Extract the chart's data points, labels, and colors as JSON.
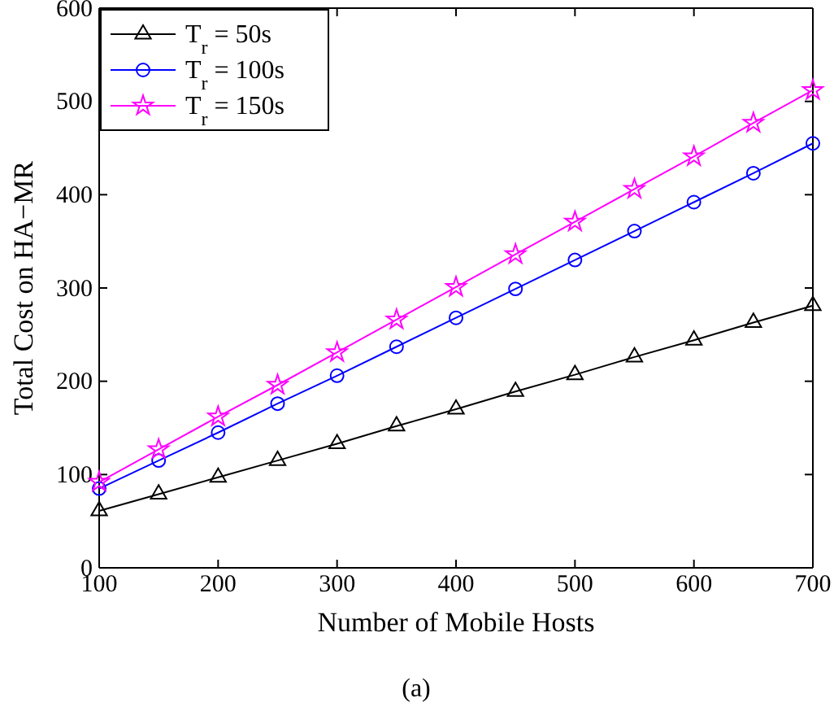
{
  "chart_data": {
    "type": "line",
    "xlabel": "Number of Mobile Hosts",
    "ylabel": "Total Cost on HA−MR",
    "annotations": [
      "(a)"
    ],
    "x": [
      100,
      150,
      200,
      250,
      300,
      350,
      400,
      450,
      500,
      550,
      600,
      650,
      700
    ],
    "xlim": [
      100,
      700
    ],
    "xticks": [
      100,
      200,
      300,
      400,
      500,
      600,
      700
    ],
    "ylim": [
      0,
      600
    ],
    "yticks": [
      0,
      100,
      200,
      300,
      400,
      500,
      600
    ],
    "grid": false,
    "legend": "top left",
    "line_style": "solid",
    "series": [
      {
        "name": "T$_{r}$ = 50s",
        "color": "#000000",
        "marker": "triangle",
        "values": [
          61,
          79,
          97,
          115,
          133,
          152,
          170,
          189,
          207,
          226,
          244,
          263,
          281
        ]
      },
      {
        "name": "T$_{r}$ = 100s",
        "color": "#0000ff",
        "marker": "circle",
        "values": [
          85,
          115,
          145,
          176,
          206,
          237,
          268,
          299,
          330,
          361,
          392,
          423,
          455
        ]
      },
      {
        "name": "T$_{r}$ = 150s",
        "color": "#ff00ff",
        "marker": "star",
        "values": [
          92,
          127,
          162,
          196,
          231,
          266,
          301,
          336,
          371,
          406,
          441,
          477,
          512
        ]
      }
    ]
  }
}
